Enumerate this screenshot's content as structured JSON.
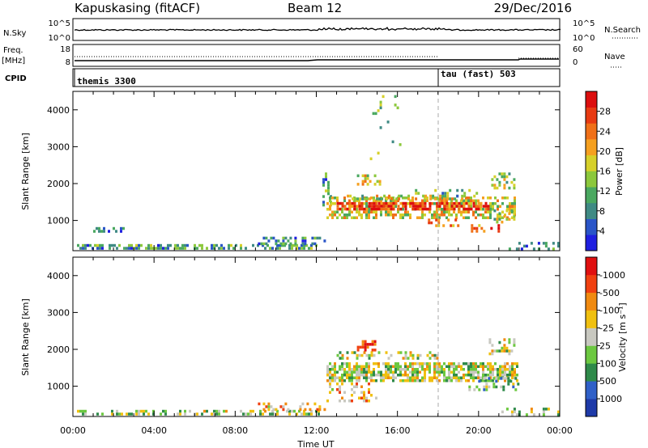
{
  "header": {
    "station": "Kapuskasing (fitACF)",
    "beam": "Beam 12",
    "date": "29/Dec/2016"
  },
  "strip1": {
    "left_label": "N.Sky",
    "left_ticks": [
      "10^5",
      "10^0"
    ],
    "right_ticks": [
      "10^5",
      "10^0"
    ],
    "right_label": "N.Search"
  },
  "strip2": {
    "left_label_1": "Freq.",
    "left_label_2": "[MHz]",
    "left_ticks": [
      "18",
      "8"
    ],
    "right_ticks": [
      "60",
      "0"
    ],
    "right_label": "Nave"
  },
  "cpid": {
    "label": "CPID",
    "segments": [
      {
        "name": "themis 3300",
        "start_hour": 0
      },
      {
        "name": "tau (fast) 503",
        "start_hour": 18
      }
    ]
  },
  "chart_data": [
    {
      "type": "heatmap",
      "quantity": "power",
      "ylabel": "Slant Range [km]",
      "yticks": [
        1000,
        2000,
        3000,
        4000
      ],
      "ylim": [
        180,
        4500
      ],
      "xlim": [
        0,
        24
      ],
      "colorbar": {
        "label": "Power [dB]",
        "ticks": [
          "4",
          "8",
          "12",
          "16",
          "20",
          "24",
          "28"
        ],
        "colors": [
          "#1f1fe0",
          "#2a55c8",
          "#3f8a84",
          "#4aa860",
          "#8cc83c",
          "#d6d02a",
          "#f5a020",
          "#f07018",
          "#e83a12",
          "#dc0e0e"
        ]
      },
      "regions": [
        {
          "x0": 0.2,
          "x1": 12.2,
          "y0": 200,
          "y1": 360,
          "level": 0.3,
          "density": 0.55
        },
        {
          "x0": 9.0,
          "x1": 12.5,
          "y0": 300,
          "y1": 560,
          "level": 0.3,
          "density": 0.35
        },
        {
          "x0": 1.0,
          "x1": 2.5,
          "y0": 600,
          "y1": 820,
          "level": 0.25,
          "density": 0.3
        },
        {
          "x0": 12.3,
          "x1": 12.8,
          "y0": 1350,
          "y1": 2300,
          "level": 0.3,
          "density": 0.3
        },
        {
          "x0": 12.5,
          "x1": 21.8,
          "y0": 1050,
          "y1": 1650,
          "level": 0.55,
          "density": 0.55
        },
        {
          "x0": 13.0,
          "x1": 20.5,
          "y0": 1250,
          "y1": 1500,
          "level": 0.85,
          "density": 0.7
        },
        {
          "x0": 13.5,
          "x1": 19.5,
          "y0": 1550,
          "y1": 1700,
          "level": 0.5,
          "density": 0.45
        },
        {
          "x0": 14.0,
          "x1": 15.2,
          "y0": 1950,
          "y1": 2250,
          "level": 0.55,
          "density": 0.4
        },
        {
          "x0": 16.5,
          "x1": 20.0,
          "y0": 1650,
          "y1": 1850,
          "level": 0.35,
          "density": 0.25
        },
        {
          "x0": 17.5,
          "x1": 19.0,
          "y0": 800,
          "y1": 1050,
          "level": 0.7,
          "density": 0.4
        },
        {
          "x0": 19.5,
          "x1": 21.0,
          "y0": 700,
          "y1": 900,
          "level": 0.75,
          "density": 0.35
        },
        {
          "x0": 20.5,
          "x1": 21.8,
          "y0": 1850,
          "y1": 2300,
          "level": 0.45,
          "density": 0.35
        },
        {
          "x0": 20.5,
          "x1": 21.8,
          "y0": 900,
          "y1": 1300,
          "level": 0.45,
          "density": 0.35
        },
        {
          "x0": 21.0,
          "x1": 24.0,
          "y0": 200,
          "y1": 420,
          "level": 0.25,
          "density": 0.2
        },
        {
          "x0": 14.4,
          "x1": 16.2,
          "y0": 2500,
          "y1": 4400,
          "level": 0.4,
          "density": 0.05
        }
      ]
    },
    {
      "type": "heatmap",
      "quantity": "velocity",
      "ylabel": "Slant Range [km]",
      "xlabel": "Time UT",
      "xticks": [
        "00:00",
        "04:00",
        "08:00",
        "12:00",
        "16:00",
        "20:00",
        "00:00"
      ],
      "yticks": [
        1000,
        2000,
        3000,
        4000
      ],
      "ylim": [
        180,
        4500
      ],
      "xlim": [
        0,
        24
      ],
      "colorbar": {
        "label": "Velocity [m s⁻¹]",
        "ticks": [
          "1000",
          "500",
          "100",
          "25",
          "-25",
          "-100",
          "-500",
          "-1000"
        ],
        "colors": [
          "#1e3aa8",
          "#3060c8",
          "#2f8a4a",
          "#6cc840",
          "#c8c8c0",
          "#f0c010",
          "#f08a10",
          "#f04010",
          "#e01010"
        ]
      },
      "regions": [
        {
          "x0": 0.2,
          "x1": 12.2,
          "y0": 200,
          "y1": 360,
          "level": 0.45,
          "density": 0.45
        },
        {
          "x0": 9.0,
          "x1": 12.5,
          "y0": 300,
          "y1": 560,
          "level": 0.6,
          "density": 0.35
        },
        {
          "x0": 12.5,
          "x1": 22.0,
          "y0": 1150,
          "y1": 1650,
          "level": 0.5,
          "density": 0.7
        },
        {
          "x0": 13.0,
          "x1": 18.0,
          "y0": 1700,
          "y1": 1950,
          "level": 0.5,
          "density": 0.35
        },
        {
          "x0": 14.0,
          "x1": 15.0,
          "y0": 1950,
          "y1": 2250,
          "level": 0.88,
          "density": 0.5
        },
        {
          "x0": 19.5,
          "x1": 22.0,
          "y0": 850,
          "y1": 1250,
          "level": 0.35,
          "density": 0.4
        },
        {
          "x0": 20.5,
          "x1": 21.8,
          "y0": 1850,
          "y1": 2300,
          "level": 0.5,
          "density": 0.35
        },
        {
          "x0": 12.5,
          "x1": 15.0,
          "y0": 600,
          "y1": 1100,
          "level": 0.62,
          "density": 0.25
        },
        {
          "x0": 21.0,
          "x1": 24.0,
          "y0": 200,
          "y1": 420,
          "level": 0.45,
          "density": 0.2
        }
      ]
    }
  ]
}
